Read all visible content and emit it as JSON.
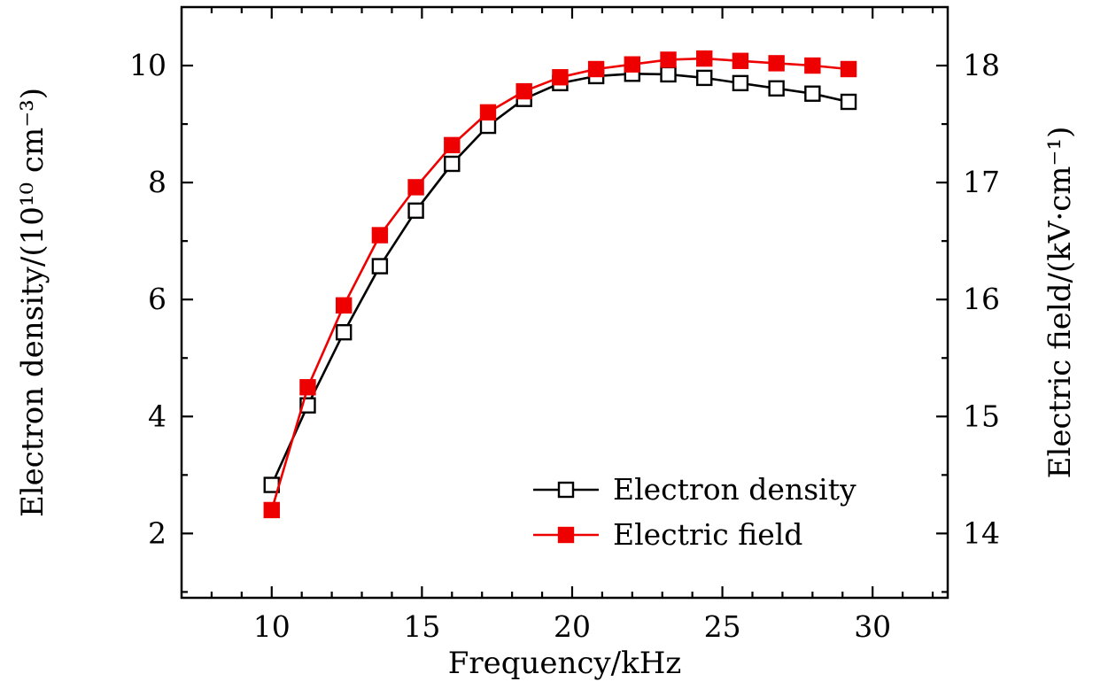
{
  "chart_data": {
    "type": "line",
    "title": "",
    "xlabel": "Frequency/kHz",
    "ylabel_left": "Electron density/(10¹⁰ cm⁻³)",
    "ylabel_right": "Electric field/(kV·cm⁻¹)",
    "xlim": [
      7,
      32.5
    ],
    "ylim_left": [
      0.9,
      11.0
    ],
    "ylim_right": [
      13.45,
      18.5
    ],
    "xticks": [
      10,
      15,
      20,
      25,
      30
    ],
    "yticks_left": [
      2,
      4,
      6,
      8,
      10
    ],
    "yticks_right": [
      14,
      15,
      16,
      17,
      18
    ],
    "x_minor_step": 1,
    "y_left_minor_step": 1,
    "y_right_minor_step": 0.5,
    "grid": false,
    "frame_color": "#000000",
    "background": "#ffffff",
    "x": [
      10,
      11.2,
      12.4,
      13.6,
      14.8,
      16,
      17.2,
      18.4,
      19.6,
      20.8,
      22,
      23.2,
      24.4,
      25.6,
      26.8,
      28,
      29.2
    ],
    "series": [
      {
        "name": "Electron density",
        "axis": "left",
        "color": "#000000",
        "marker": "open-square",
        "values": [
          2.83,
          4.19,
          5.44,
          6.57,
          7.52,
          8.32,
          8.97,
          9.43,
          9.7,
          9.82,
          9.86,
          9.85,
          9.79,
          9.7,
          9.61,
          9.52,
          9.38
        ]
      },
      {
        "name": "Electric field",
        "axis": "right",
        "color": "#ee0000",
        "marker": "filled-square",
        "values": [
          14.2,
          15.25,
          15.95,
          16.55,
          16.96,
          17.32,
          17.6,
          17.78,
          17.9,
          17.97,
          18.01,
          18.05,
          18.06,
          18.04,
          18.02,
          18.0,
          17.97
        ]
      }
    ],
    "legend": {
      "position": "inside-bottom-right",
      "entries": [
        {
          "label": "Electron density",
          "color": "#000000",
          "marker": "open-square"
        },
        {
          "label": "Electric field",
          "color": "#ee0000",
          "marker": "filled-square"
        }
      ]
    }
  }
}
